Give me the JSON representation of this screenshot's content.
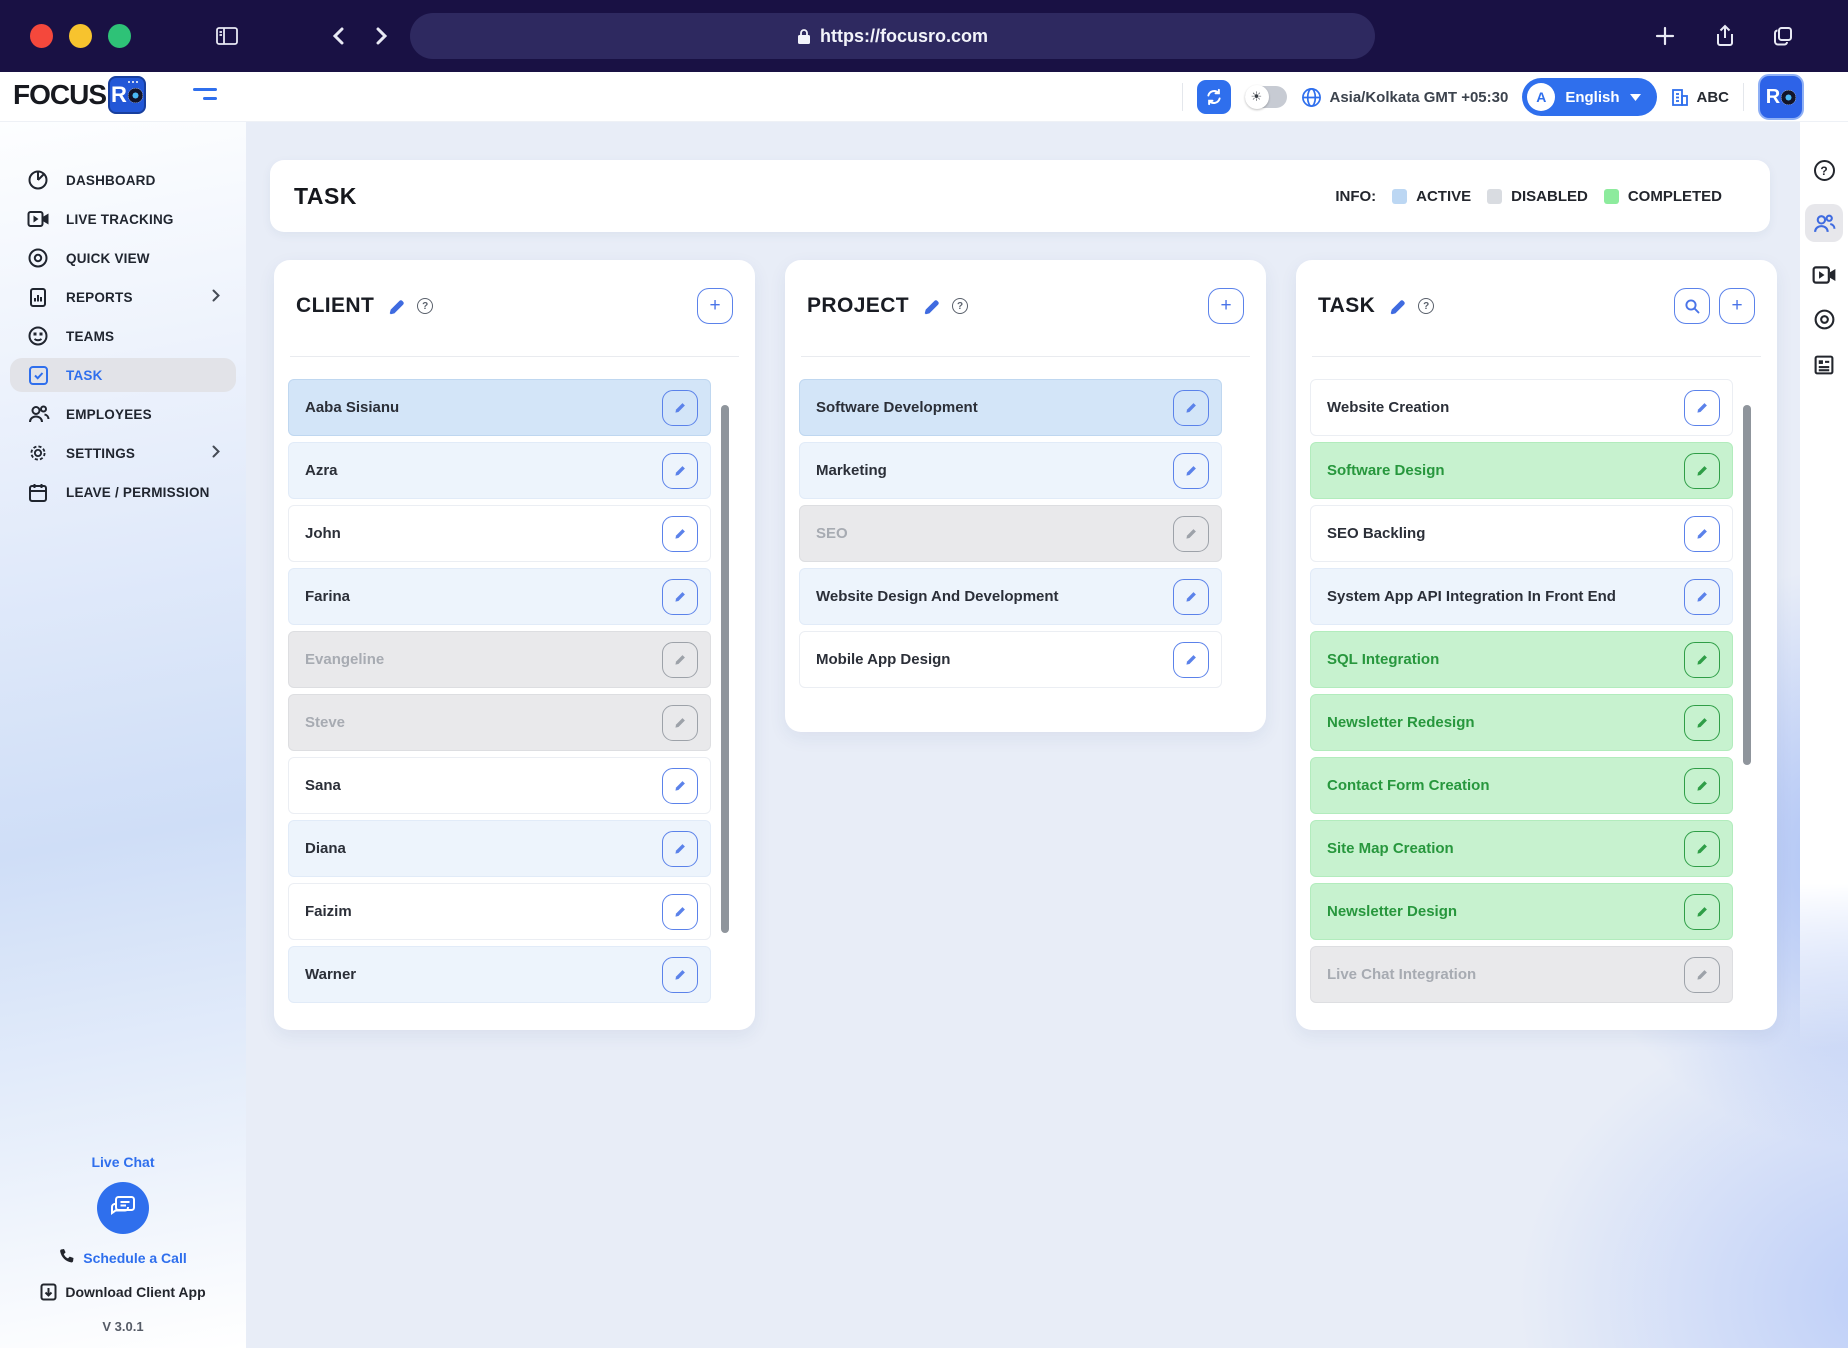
{
  "browser": {
    "url": "https://focusro.com",
    "icons": [
      "window-panel-icon",
      "back-icon",
      "forward-icon",
      "new-tab-icon",
      "share-icon",
      "tabs-icon"
    ]
  },
  "header": {
    "logo_text": "FOCUS",
    "logo_badge": "R",
    "timezone": "Asia/Kolkata GMT +05:30",
    "language": "English",
    "org_label": "ABC",
    "avatar_letter": "R",
    "accent_color": "#2f6fed"
  },
  "sidebar": {
    "items": [
      {
        "label": "DASHBOARD",
        "icon": "dashboard-pie-icon"
      },
      {
        "label": "LIVE TRACKING",
        "icon": "video-icon"
      },
      {
        "label": "QUICK VIEW",
        "icon": "eye-icon"
      },
      {
        "label": "REPORTS",
        "icon": "report-icon",
        "chevron": true
      },
      {
        "label": "TEAMS",
        "icon": "teams-icon"
      },
      {
        "label": "TASK",
        "icon": "task-check-icon",
        "selected": true
      },
      {
        "label": "EMPLOYEES",
        "icon": "people-icon"
      },
      {
        "label": "SETTINGS",
        "icon": "gear-icon",
        "chevron": true
      },
      {
        "label": "LEAVE / PERMISSION",
        "icon": "calendar-icon"
      }
    ],
    "footer": {
      "live_chat": "Live Chat",
      "schedule_call": "Schedule a Call",
      "download_app": "Download Client App",
      "version": "V 3.0.1"
    }
  },
  "page": {
    "title": "TASK",
    "legend": {
      "info_label": "INFO:",
      "items": [
        {
          "label": "ACTIVE",
          "color": "#bcd7f3"
        },
        {
          "label": "DISABLED",
          "color": "#d9dce1"
        },
        {
          "label": "COMPLETED",
          "color": "#8deb9d"
        }
      ]
    }
  },
  "columns": [
    {
      "title": "CLIENT",
      "rows": [
        {
          "name": "Aaba Sisianu",
          "state": "selected"
        },
        {
          "name": "Azra",
          "state": "alt"
        },
        {
          "name": "John",
          "state": "plain"
        },
        {
          "name": "Farina",
          "state": "alt"
        },
        {
          "name": "Evangeline",
          "state": "disabled"
        },
        {
          "name": "Steve",
          "state": "disabled"
        },
        {
          "name": "Sana",
          "state": "plain"
        },
        {
          "name": "Diana",
          "state": "alt"
        },
        {
          "name": "Faizim",
          "state": "plain"
        },
        {
          "name": "Warner",
          "state": "alt"
        }
      ]
    },
    {
      "title": "PROJECT",
      "rows": [
        {
          "name": "Software Development",
          "state": "selected"
        },
        {
          "name": "Marketing",
          "state": "alt"
        },
        {
          "name": "SEO",
          "state": "disabled"
        },
        {
          "name": "Website Design And Development",
          "state": "alt"
        },
        {
          "name": "Mobile App Design",
          "state": "plain"
        }
      ]
    },
    {
      "title": "TASK",
      "rows": [
        {
          "name": "Website Creation",
          "state": "plain"
        },
        {
          "name": "Software Design",
          "state": "completed"
        },
        {
          "name": "SEO Backling",
          "state": "plain"
        },
        {
          "name": "System App API Integration In Front End",
          "state": "alt"
        },
        {
          "name": "SQL Integration",
          "state": "completed"
        },
        {
          "name": "Newsletter Redesign",
          "state": "completed"
        },
        {
          "name": "Contact Form Creation",
          "state": "completed"
        },
        {
          "name": "Site Map Creation",
          "state": "completed"
        },
        {
          "name": "Newsletter Design",
          "state": "completed"
        },
        {
          "name": "Live Chat Integration",
          "state": "disabled"
        }
      ]
    }
  ],
  "rail_icons": [
    "help-icon",
    "people-icon",
    "video-icon",
    "eye-icon",
    "news-icon"
  ]
}
